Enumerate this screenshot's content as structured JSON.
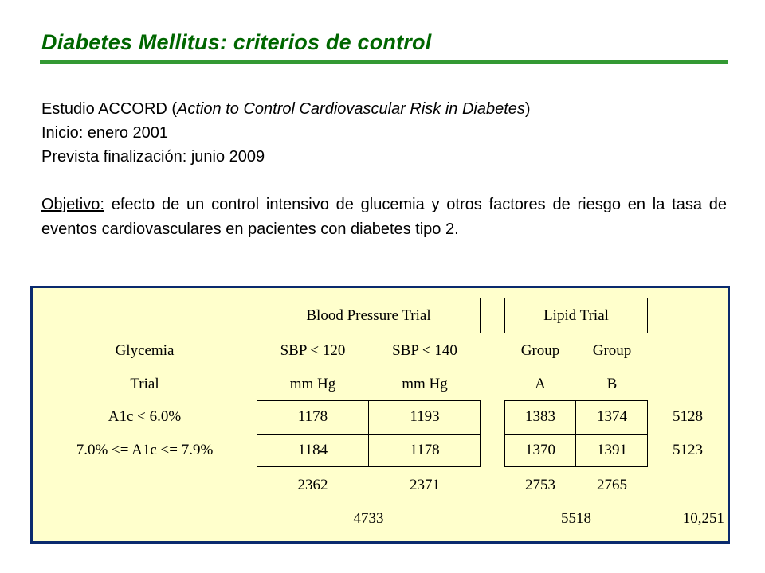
{
  "title": "Diabetes Mellitus: criterios de control",
  "intro": {
    "study_prefix": "Estudio ACCORD (",
    "study_name": "Action to Control Cardiovascular Risk in Diabetes",
    "study_suffix": ")",
    "start": "Inicio: enero 2001",
    "end": "Prevista finalización: junio 2009",
    "objective_label": "Objetivo:",
    "objective_text": " efecto de un control intensivo de glucemia y otros factores de riesgo en la tasa de eventos cardiovasculares en pacientes con diabetes tipo 2."
  },
  "table": {
    "bp_trial_label": "Blood Pressure Trial",
    "lipid_trial_label": "Lipid Trial",
    "row_header_1": "Glycemia",
    "row_header_2": "Trial",
    "sbp120_1": "SBP < 120",
    "sbp120_2": "mm Hg",
    "sbp140_1": "SBP < 140",
    "sbp140_2": "mm Hg",
    "groupA_1": "Group",
    "groupA_2": "A",
    "groupB_1": "Group",
    "groupB_2": "B",
    "rows": [
      {
        "label": "A1c < 6.0%",
        "sbp120": "1178",
        "sbp140": "1193",
        "groupA": "1383",
        "groupB": "1374",
        "total": "5128"
      },
      {
        "label": "7.0% <= A1c <= 7.9%",
        "sbp120": "1184",
        "sbp140": "1178",
        "groupA": "1370",
        "groupB": "1391",
        "total": "5123"
      }
    ],
    "col_totals": {
      "sbp120": "2362",
      "sbp140": "2371",
      "groupA": "2753",
      "groupB": "2765"
    },
    "bp_total": "4733",
    "lipid_total": "5518",
    "grand_total": "10,251"
  }
}
